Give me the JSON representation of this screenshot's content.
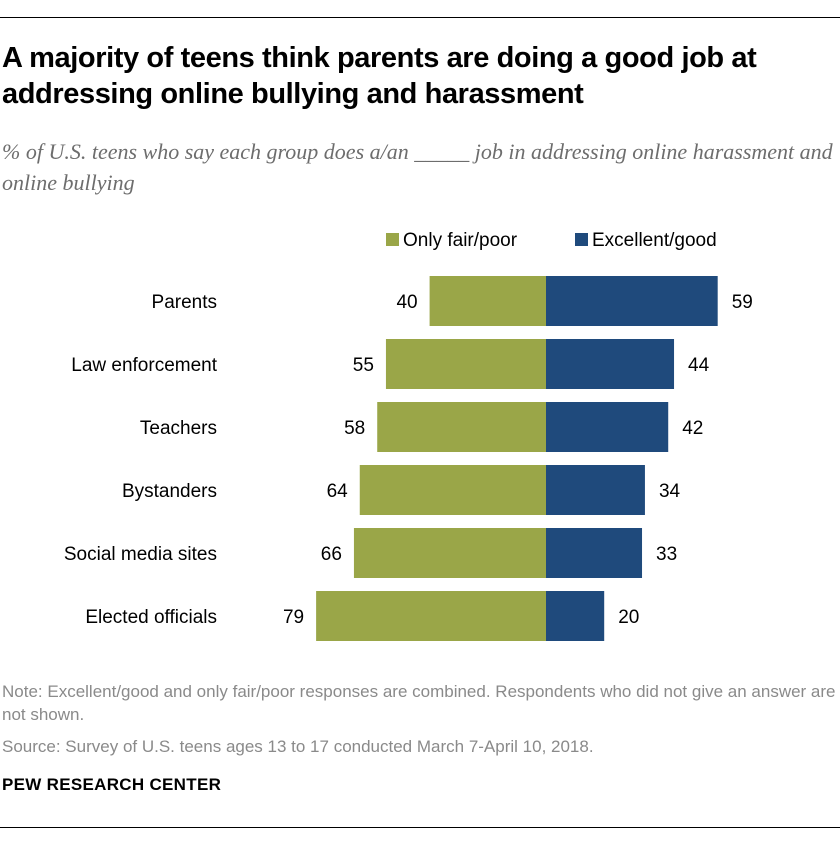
{
  "title": "A majority of teens think parents are doing a good job at addressing online bullying and harassment",
  "subtitle": "% of U.S. teens who say each group does a/an _____ job in addressing online harassment and online bullying",
  "note": "Note: Excellent/good and only fair/poor responses are combined. Respondents who did not give an answer are not shown.",
  "source": "Source: Survey of U.S. teens ages 13 to 17 conducted March 7-April 10, 2018.",
  "brand": "PEW RESEARCH CENTER",
  "colors": {
    "fair_poor": "#9aa648",
    "excellent_good": "#1f4a7c"
  },
  "chart_data": {
    "type": "bar",
    "orientation": "horizontal-diverging",
    "categories": [
      "Parents",
      "Law enforcement",
      "Teachers",
      "Bystanders",
      "Social media sites",
      "Elected officials"
    ],
    "series": [
      {
        "name": "Only fair/poor",
        "values": [
          40,
          55,
          58,
          64,
          66,
          79
        ]
      },
      {
        "name": "Excellent/good",
        "values": [
          59,
          44,
          42,
          34,
          33,
          20
        ]
      }
    ],
    "legend_position": "top-right",
    "grid": false
  }
}
